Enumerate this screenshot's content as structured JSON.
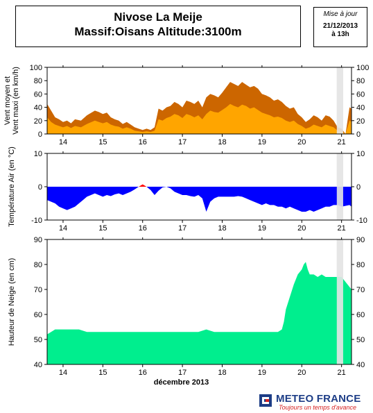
{
  "header": {
    "title_line1": "Nivose La Meije",
    "title_line2": "Massif:Oisans Altitude:3100m"
  },
  "update": {
    "label": "Mise à jour",
    "date": "21/12/2013",
    "time": "à 13h"
  },
  "brand": {
    "name": "METEO FRANCE",
    "slogan": "Toujours un temps d'avance",
    "icon": "meteo-france-logo"
  },
  "chart_data": [
    {
      "type": "area",
      "ylabel": "Vent moyen et\nVent maxi (en km/h)",
      "ylim": [
        0,
        100
      ],
      "yticks": [
        0,
        20,
        40,
        60,
        80,
        100
      ],
      "xticks": [
        "14",
        "15",
        "16",
        "17",
        "18",
        "19",
        "20",
        "21"
      ],
      "x_range": [
        13.6,
        21.25
      ],
      "colors": {
        "mean": "#ffa500",
        "max": "#cc6600"
      },
      "series": [
        {
          "key": "max",
          "x": [
            13.6,
            13.7,
            13.8,
            13.9,
            14.0,
            14.1,
            14.2,
            14.3,
            14.45,
            14.6,
            14.8,
            14.9,
            15.0,
            15.1,
            15.2,
            15.3,
            15.4,
            15.5,
            15.6,
            15.7,
            15.8,
            15.9,
            16.0,
            16.1,
            16.2,
            16.3,
            16.4,
            16.5,
            16.6,
            16.7,
            16.8,
            16.9,
            17.0,
            17.1,
            17.2,
            17.3,
            17.4,
            17.5,
            17.6,
            17.7,
            17.8,
            17.9,
            18.0,
            18.1,
            18.2,
            18.3,
            18.4,
            18.5,
            18.6,
            18.7,
            18.8,
            18.9,
            19.0,
            19.1,
            19.2,
            19.3,
            19.4,
            19.5,
            19.6,
            19.7,
            19.8,
            19.9,
            20.0,
            20.1,
            20.2,
            20.3,
            20.4,
            20.5,
            20.6,
            20.7,
            20.8,
            20.9,
            21.0,
            21.1,
            21.2,
            21.25
          ],
          "values": [
            45,
            35,
            25,
            22,
            18,
            20,
            16,
            22,
            20,
            28,
            35,
            33,
            30,
            32,
            25,
            22,
            20,
            15,
            18,
            14,
            10,
            8,
            6,
            8,
            6,
            10,
            38,
            35,
            40,
            42,
            48,
            45,
            40,
            50,
            48,
            45,
            50,
            40,
            55,
            60,
            58,
            55,
            62,
            70,
            78,
            75,
            72,
            78,
            74,
            70,
            72,
            68,
            60,
            58,
            55,
            50,
            52,
            48,
            42,
            38,
            40,
            30,
            25,
            18,
            22,
            28,
            25,
            20,
            28,
            26,
            20,
            10,
            8,
            0,
            40,
            38
          ]
        },
        {
          "key": "mean",
          "x": [
            13.6,
            13.7,
            13.8,
            13.9,
            14.0,
            14.1,
            14.2,
            14.3,
            14.45,
            14.6,
            14.8,
            14.9,
            15.0,
            15.1,
            15.2,
            15.3,
            15.4,
            15.5,
            15.6,
            15.7,
            15.8,
            15.9,
            16.0,
            16.1,
            16.2,
            16.3,
            16.4,
            16.5,
            16.6,
            16.7,
            16.8,
            16.9,
            17.0,
            17.1,
            17.2,
            17.3,
            17.4,
            17.5,
            17.6,
            17.7,
            17.8,
            17.9,
            18.0,
            18.1,
            18.2,
            18.3,
            18.4,
            18.5,
            18.6,
            18.7,
            18.8,
            18.9,
            19.0,
            19.1,
            19.2,
            19.3,
            19.4,
            19.5,
            19.6,
            19.7,
            19.8,
            19.9,
            20.0,
            20.1,
            20.2,
            20.3,
            20.4,
            20.5,
            20.6,
            20.7,
            20.8,
            20.9,
            21.0,
            21.1,
            21.2,
            21.25
          ],
          "values": [
            25,
            18,
            14,
            12,
            10,
            12,
            9,
            12,
            10,
            15,
            20,
            18,
            16,
            18,
            14,
            12,
            11,
            8,
            10,
            8,
            5,
            4,
            3,
            4,
            3,
            5,
            22,
            20,
            24,
            26,
            30,
            28,
            24,
            30,
            28,
            25,
            28,
            22,
            30,
            35,
            33,
            32,
            36,
            40,
            45,
            42,
            40,
            44,
            42,
            38,
            40,
            36,
            32,
            30,
            28,
            25,
            26,
            24,
            20,
            18,
            20,
            15,
            12,
            8,
            10,
            14,
            12,
            10,
            14,
            12,
            10,
            5,
            4,
            0,
            20,
            18
          ]
        }
      ]
    },
    {
      "type": "area",
      "ylabel": "Température Air (en °C)",
      "ylim": [
        -10,
        10
      ],
      "yticks": [
        -10,
        0,
        10
      ],
      "xticks": [
        "14",
        "15",
        "16",
        "17",
        "18",
        "19",
        "20",
        "21"
      ],
      "x_range": [
        13.6,
        21.25
      ],
      "colors": {
        "negative": "#0000ff",
        "positive": "#ff0000"
      },
      "series": [
        {
          "key": "temperature",
          "x": [
            13.6,
            13.7,
            13.8,
            13.9,
            14.0,
            14.1,
            14.2,
            14.3,
            14.4,
            14.5,
            14.6,
            14.7,
            14.8,
            14.9,
            15.0,
            15.1,
            15.2,
            15.3,
            15.4,
            15.5,
            15.6,
            15.7,
            15.8,
            15.9,
            16.0,
            16.1,
            16.2,
            16.3,
            16.4,
            16.5,
            16.6,
            16.7,
            16.8,
            16.9,
            17.0,
            17.1,
            17.2,
            17.3,
            17.4,
            17.5,
            17.6,
            17.7,
            17.8,
            17.9,
            18.0,
            18.1,
            18.2,
            18.3,
            18.4,
            18.5,
            18.6,
            18.7,
            18.8,
            18.9,
            19.0,
            19.1,
            19.2,
            19.3,
            19.4,
            19.5,
            19.6,
            19.7,
            19.8,
            19.9,
            20.0,
            20.1,
            20.2,
            20.3,
            20.4,
            20.5,
            20.6,
            20.7,
            20.8,
            20.9,
            21.0,
            21.2,
            21.25
          ],
          "values": [
            -4.0,
            -4.5,
            -5.0,
            -6.0,
            -6.5,
            -7.0,
            -6.5,
            -6.0,
            -5.0,
            -4.0,
            -3.0,
            -2.5,
            -2.0,
            -2.5,
            -3.0,
            -2.5,
            -2.8,
            -2.3,
            -2.0,
            -2.5,
            -2.0,
            -1.5,
            -0.8,
            0.0,
            0.7,
            0.0,
            -1.0,
            -2.5,
            -1.2,
            -0.2,
            0.0,
            -0.5,
            -1.5,
            -2.0,
            -2.5,
            -2.5,
            -2.8,
            -3.0,
            -2.5,
            -3.5,
            -7.5,
            -4.5,
            -3.5,
            -3.0,
            -3.0,
            -3.0,
            -3.0,
            -3.0,
            -2.8,
            -3.0,
            -3.5,
            -4.0,
            -4.5,
            -5.0,
            -5.5,
            -5.0,
            -5.5,
            -5.5,
            -6.0,
            -6.0,
            -6.5,
            -6.0,
            -6.5,
            -7.0,
            -7.5,
            -7.5,
            -7.0,
            -7.5,
            -7.0,
            -6.5,
            -6.0,
            -6.0,
            -5.5,
            -5.5,
            -6.0,
            -5.5,
            -6.0
          ]
        }
      ]
    },
    {
      "type": "area",
      "ylabel": "Hauteur de Neige (en cm)",
      "xlabel": "décembre 2013",
      "ylim": [
        40,
        90
      ],
      "yticks": [
        40,
        50,
        60,
        70,
        80,
        90
      ],
      "xticks": [
        "14",
        "15",
        "16",
        "17",
        "18",
        "19",
        "20",
        "21"
      ],
      "x_range": [
        13.6,
        21.25
      ],
      "colors": {
        "snow": "#00ee8e"
      },
      "series": [
        {
          "key": "snow_depth",
          "x": [
            13.6,
            13.8,
            14.0,
            14.2,
            14.4,
            14.6,
            14.8,
            15.0,
            15.2,
            15.4,
            15.6,
            15.8,
            16.0,
            16.2,
            16.4,
            16.6,
            16.8,
            17.0,
            17.2,
            17.4,
            17.6,
            17.8,
            18.0,
            18.2,
            18.4,
            18.6,
            18.8,
            19.0,
            19.2,
            19.4,
            19.5,
            19.55,
            19.6,
            19.7,
            19.8,
            19.9,
            20.0,
            20.05,
            20.1,
            20.15,
            20.2,
            20.3,
            20.4,
            20.5,
            20.6,
            20.7,
            20.8,
            20.9,
            21.0,
            21.25
          ],
          "values": [
            52,
            54,
            54,
            54,
            54,
            53,
            53,
            53,
            53,
            53,
            53,
            53,
            53,
            53,
            53,
            53,
            53,
            53,
            53,
            53,
            54,
            53,
            53,
            53,
            53,
            53,
            53,
            53,
            53,
            53,
            54,
            57,
            62,
            67,
            72,
            76,
            78,
            80,
            81,
            78,
            76,
            76,
            75,
            76,
            75,
            75,
            75,
            75,
            75,
            70
          ]
        }
      ]
    }
  ]
}
